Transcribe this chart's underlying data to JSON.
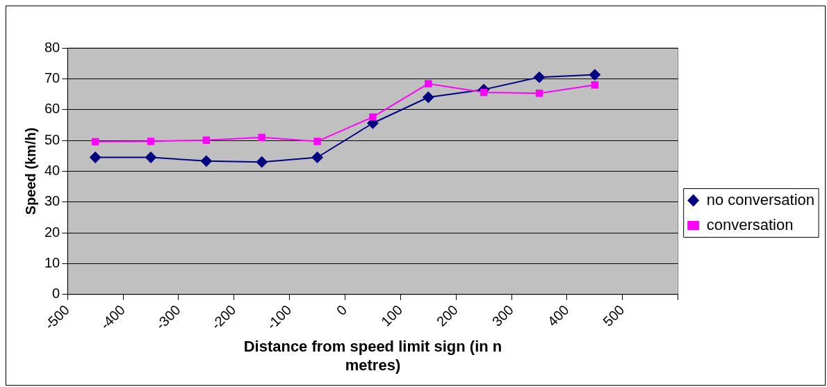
{
  "chart_data": {
    "type": "line",
    "xlabel": "Distance from speed limit sign (in n metres)",
    "ylabel": "Speed (km/h)",
    "x": [
      -450,
      -350,
      -250,
      -150,
      -50,
      50,
      150,
      250,
      350,
      450
    ],
    "series": [
      {
        "name": "no conversation",
        "color": "#000080",
        "marker": "diamond",
        "values": [
          44.5,
          44.5,
          43.3,
          43,
          44.5,
          55.6,
          64,
          66.5,
          70.5,
          71.3
        ]
      },
      {
        "name": "conversation",
        "color": "#ff00ff",
        "marker": "square",
        "values": [
          49.6,
          49.7,
          50.1,
          51,
          49.7,
          57.6,
          68.4,
          65.6,
          65.3,
          68
        ]
      }
    ],
    "xlim": [
      -500,
      600
    ],
    "xticks": [
      -500,
      -400,
      -300,
      -200,
      -100,
      0,
      100,
      200,
      300,
      400,
      500,
      {
        "value": 600,
        "label": null
      }
    ],
    "ylim": [
      0,
      80
    ],
    "yticks": [
      0,
      10,
      20,
      30,
      40,
      50,
      60,
      70,
      80
    ],
    "grid": "y",
    "legend": "right"
  }
}
